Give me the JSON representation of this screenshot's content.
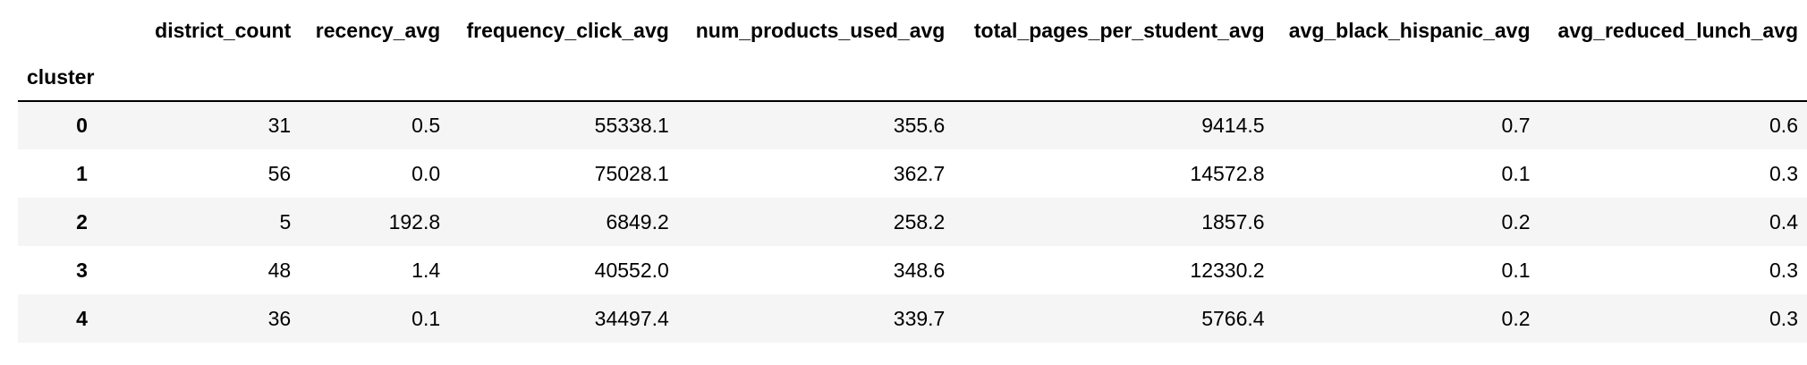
{
  "table": {
    "index_name": "cluster",
    "columns": [
      "district_count",
      "recency_avg",
      "frequency_click_avg",
      "num_products_used_avg",
      "total_pages_per_student_avg",
      "avg_black_hispanic_avg",
      "avg_reduced_lunch_avg"
    ],
    "rows": [
      {
        "index": "0",
        "values": [
          "31",
          "0.5",
          "55338.1",
          "355.6",
          "9414.5",
          "0.7",
          "0.6"
        ]
      },
      {
        "index": "1",
        "values": [
          "56",
          "0.0",
          "75028.1",
          "362.7",
          "14572.8",
          "0.1",
          "0.3"
        ]
      },
      {
        "index": "2",
        "values": [
          "5",
          "192.8",
          "6849.2",
          "258.2",
          "1857.6",
          "0.2",
          "0.4"
        ]
      },
      {
        "index": "3",
        "values": [
          "48",
          "1.4",
          "40552.0",
          "348.6",
          "12330.2",
          "0.1",
          "0.3"
        ]
      },
      {
        "index": "4",
        "values": [
          "36",
          "0.1",
          "34497.4",
          "339.7",
          "5766.4",
          "0.2",
          "0.3"
        ]
      }
    ]
  }
}
